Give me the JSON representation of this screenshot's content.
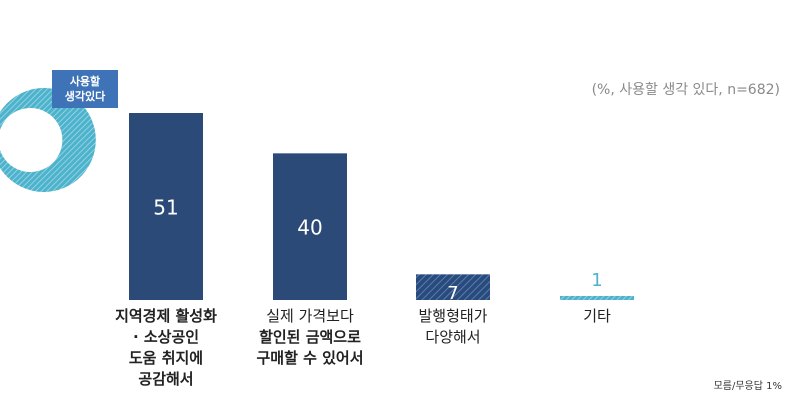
{
  "note": "(%, 사용할 생각 있다, n=682)",
  "footnote": "모름/무응답 1%",
  "badge": {
    "line1": "사용할",
    "line2": "생각있다"
  },
  "colors": {
    "bar_dark": "#2b4a78",
    "bar_stripe": "#3d6aa6",
    "teal": "#4db3cc",
    "badge": "#3e73b8"
  },
  "chart_data": {
    "type": "bar",
    "categories": [
      "지역경제 활성화 · 소상공인 도움 취지에 공감해서",
      "실제 가격보다 할인된 금액으로 구매할 수 있어서",
      "발행형태가 다양해서",
      "기타"
    ],
    "values": [
      51,
      40,
      7,
      1
    ],
    "data_labels": [
      "51",
      "40",
      "7",
      "1"
    ],
    "ylim": [
      0,
      60
    ],
    "title": "",
    "xlabel": "",
    "ylabel": ""
  },
  "category_lines": [
    {
      "lines": [
        "지역경제 활성화",
        "· 소상공인",
        "도움 취지에",
        "공감해서"
      ],
      "bold": [
        true,
        true,
        true,
        true
      ]
    },
    {
      "lines": [
        "실제 가격보다",
        "할인된 금액으로",
        "구매할 수 있어서"
      ],
      "bold": [
        false,
        true,
        true
      ]
    },
    {
      "lines": [
        "발행형태가",
        "다양해서"
      ],
      "bold": [
        false,
        false
      ]
    },
    {
      "lines": [
        "기타"
      ],
      "bold": [
        false
      ]
    }
  ]
}
